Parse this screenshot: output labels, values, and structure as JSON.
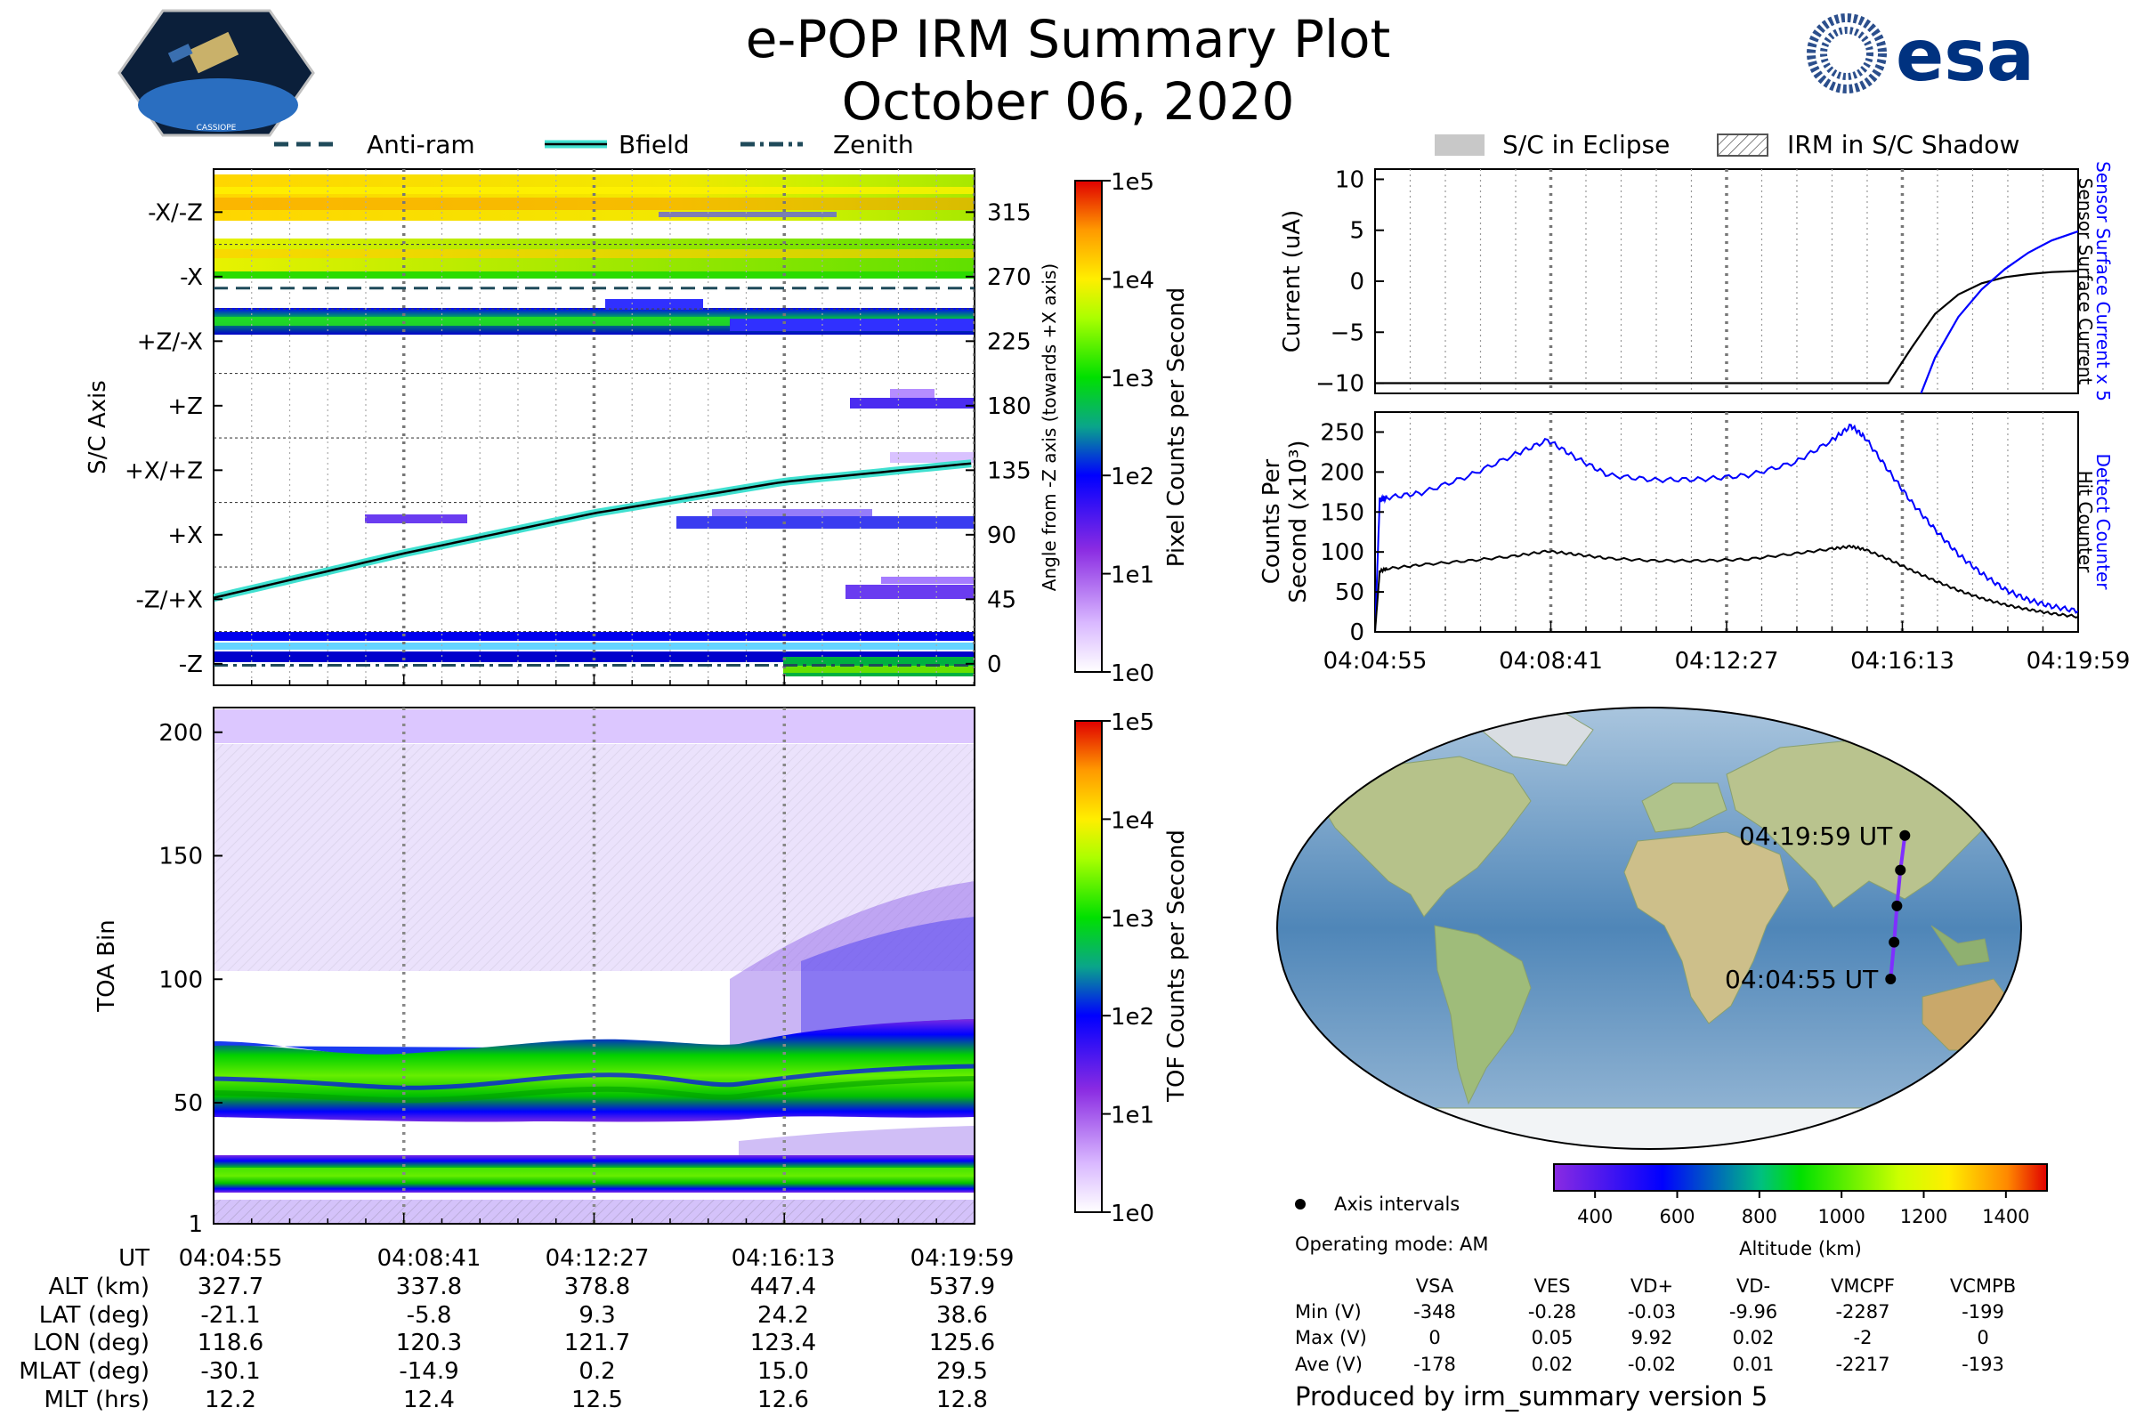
{
  "page": {
    "title": "e-POP IRM Summary Plot",
    "date": "October 06, 2020",
    "footer": "Produced by irm_summary version 5",
    "logo_left_text": "CASSIOPE",
    "logo_right_text": "esa"
  },
  "colors": {
    "bfield": "#000000",
    "bfield_halo": "#40e0d0",
    "antiram": "#1f4a5a",
    "detect_counter": "#0000ff",
    "hit_counter": "#000000",
    "orbit_track": "#7f2fff",
    "ocean": "#6f9fc6",
    "land": "#9fb585"
  },
  "chart_data": [
    {
      "id": "pixel-spectrogram",
      "type": "heatmap",
      "ylabel": "S/C Axis",
      "ylabel_right": "Angle from -Z axis (towards +X axis)",
      "y_categories": [
        "-X/-Z",
        "-X",
        "+Z/-X",
        "+Z",
        "+X/+Z",
        "+X",
        "-Z/+X",
        "-Z"
      ],
      "right_ticks": [
        "315",
        "270",
        "225",
        "180",
        "135",
        "90",
        "45",
        "0"
      ],
      "ylim": [
        -15,
        345
      ],
      "x_ticks": [
        "04:04:55",
        "04:08:41",
        "04:12:27",
        "04:16:13",
        "04:19:59"
      ],
      "xlim_minutes": [
        0,
        15.067
      ],
      "legend": [
        "Anti-ram",
        "Bfield",
        "Zenith"
      ],
      "bfield_angle_deg": {
        "t": [
          0,
          3.767,
          7.533,
          11.3,
          15.067
        ],
        "v": [
          46,
          77,
          105,
          127,
          140
        ]
      },
      "antiram_angle_deg": 262,
      "zenith_angle_deg": -1,
      "colorbar": {
        "label": "Pixel Counts per Second",
        "ticks": [
          "1e0",
          "1e1",
          "1e2",
          "1e3",
          "1e4",
          "1e5"
        ],
        "range_log10": [
          0,
          5
        ]
      }
    },
    {
      "id": "tof-spectrogram",
      "type": "heatmap",
      "ylabel": "TOA Bin",
      "y_ticks": [
        "1",
        "50",
        "100",
        "150",
        "200"
      ],
      "ylim": [
        1,
        210
      ],
      "x_ticks": [
        "04:04:55",
        "04:08:41",
        "04:12:27",
        "04:16:13",
        "04:19:59"
      ],
      "xlim_minutes": [
        0,
        15.067
      ],
      "colorbar": {
        "label": "TOF Counts per Second",
        "ticks": [
          "1e0",
          "1e1",
          "1e2",
          "1e3",
          "1e4",
          "1e5"
        ],
        "range_log10": [
          0,
          5
        ]
      }
    },
    {
      "id": "current-panel",
      "type": "line",
      "ylabel": "Current (uA)",
      "ylim": [
        -11,
        11
      ],
      "y_ticks": [
        "10",
        "5",
        "0",
        "−5",
        "−10"
      ],
      "y_tick_values": [
        10,
        5,
        0,
        -5,
        -10
      ],
      "legend": [
        "S/C in Eclipse",
        "IRM in S/C Shadow"
      ],
      "right_label_blue": "Sensor Surface Current x 5",
      "right_label_black": "Sensor Surface Current",
      "series": [
        {
          "name": "Sensor Surface Current",
          "color": "#000000",
          "x": [
            0,
            11.0,
            11.5,
            12.0,
            12.5,
            13.0,
            13.5,
            14.0,
            14.5,
            15.067
          ],
          "y": [
            -10,
            -10,
            -6.5,
            -3.2,
            -1.3,
            -0.2,
            0.4,
            0.7,
            0.9,
            1.0
          ]
        },
        {
          "name": "Sensor Surface Current x 5",
          "color": "#0000ff",
          "x": [
            11.7,
            12.0,
            12.5,
            13.0,
            13.5,
            14.0,
            14.5,
            15.067
          ],
          "y": [
            -11,
            -7.5,
            -3.5,
            -0.8,
            1.2,
            2.8,
            4.0,
            4.9
          ]
        }
      ]
    },
    {
      "id": "counts-panel",
      "type": "line",
      "ylabel_line1": "Counts Per",
      "ylabel_line2": "Second (x10³)",
      "ylim": [
        0,
        275
      ],
      "y_ticks": [
        "250",
        "200",
        "150",
        "100",
        "50",
        "0"
      ],
      "y_tick_values": [
        250,
        200,
        150,
        100,
        50,
        0
      ],
      "x_ticks": [
        "04:04:55",
        "04:08:41",
        "04:12:27",
        "04:16:13",
        "04:19:59"
      ],
      "right_label_blue": "Detect Counter",
      "right_label_black": "Hit Counter",
      "series": [
        {
          "name": "Detect Counter",
          "color": "#0000ff",
          "x": [
            0,
            0.1,
            0.25,
            1.0,
            2.0,
            3.0,
            3.7,
            4.3,
            5.0,
            6.0,
            7.0,
            8.0,
            9.0,
            9.8,
            10.2,
            10.5,
            11.0,
            11.5,
            12.0,
            12.5,
            13.0,
            13.5,
            14.0,
            14.5,
            15.067
          ],
          "y": [
            0,
            165,
            168,
            174,
            195,
            222,
            240,
            218,
            196,
            190,
            191,
            196,
            212,
            240,
            258,
            243,
            202,
            162,
            128,
            97,
            73,
            53,
            40,
            32,
            26
          ]
        },
        {
          "name": "Hit Counter",
          "color": "#000000",
          "x": [
            0,
            0.1,
            0.25,
            1.0,
            2.0,
            3.0,
            3.7,
            4.3,
            5.0,
            6.0,
            7.0,
            8.0,
            9.0,
            9.8,
            10.2,
            10.5,
            11.0,
            11.5,
            12.0,
            12.5,
            13.0,
            13.5,
            14.0,
            14.5,
            15.067
          ],
          "y": [
            0,
            76,
            79,
            84,
            89,
            95,
            101,
            97,
            92,
            89,
            89,
            91,
            98,
            104,
            107,
            103,
            91,
            77,
            64,
            52,
            42,
            34,
            28,
            23,
            19
          ]
        }
      ]
    },
    {
      "id": "orbit-map",
      "type": "scatter",
      "label_start": "04:04:55 UT",
      "label_end": "04:19:59 UT",
      "track_lonlat": [
        [
          118.6,
          -21.1
        ],
        [
          120.3,
          -5.8
        ],
        [
          121.7,
          9.3
        ],
        [
          123.4,
          24.2
        ],
        [
          125.6,
          38.6
        ]
      ],
      "legend_axis_intervals": "Axis intervals",
      "operating_mode": "Operating mode: AM",
      "altitude_colorbar": {
        "label": "Altitude (km)",
        "ticks": [
          "400",
          "600",
          "800",
          "1000",
          "1200",
          "1400"
        ],
        "range": [
          300,
          1500
        ]
      }
    }
  ],
  "ephemeris": {
    "row_labels": [
      "UT",
      "ALT (km)",
      "LAT (deg)",
      "LON (deg)",
      "MLAT (deg)",
      "MLT (hrs)"
    ],
    "columns": [
      [
        "04:04:55",
        "327.7",
        "-21.1",
        "118.6",
        "-30.1",
        "12.2"
      ],
      [
        "04:08:41",
        "337.8",
        "-5.8",
        "120.3",
        "-14.9",
        "12.4"
      ],
      [
        "04:12:27",
        "378.8",
        "9.3",
        "121.7",
        "0.2",
        "12.5"
      ],
      [
        "04:16:13",
        "447.4",
        "24.2",
        "123.4",
        "15.0",
        "12.6"
      ],
      [
        "04:19:59",
        "537.9",
        "38.6",
        "125.6",
        "29.5",
        "12.8"
      ]
    ]
  },
  "voltage_table": {
    "headers": [
      "VSA",
      "VES",
      "VD+",
      "VD-",
      "VMCPF",
      "VCMPB"
    ],
    "rows": [
      {
        "label": "Min (V)",
        "values": [
          "-348",
          "-0.28",
          "-0.03",
          "-9.96",
          "-2287",
          "-199"
        ]
      },
      {
        "label": "Max (V)",
        "values": [
          "0",
          "0.05",
          "9.92",
          "0.02",
          "-2",
          "0"
        ]
      },
      {
        "label": "Ave (V)",
        "values": [
          "-178",
          "0.02",
          "-0.02",
          "0.01",
          "-2217",
          "-193"
        ]
      }
    ]
  }
}
